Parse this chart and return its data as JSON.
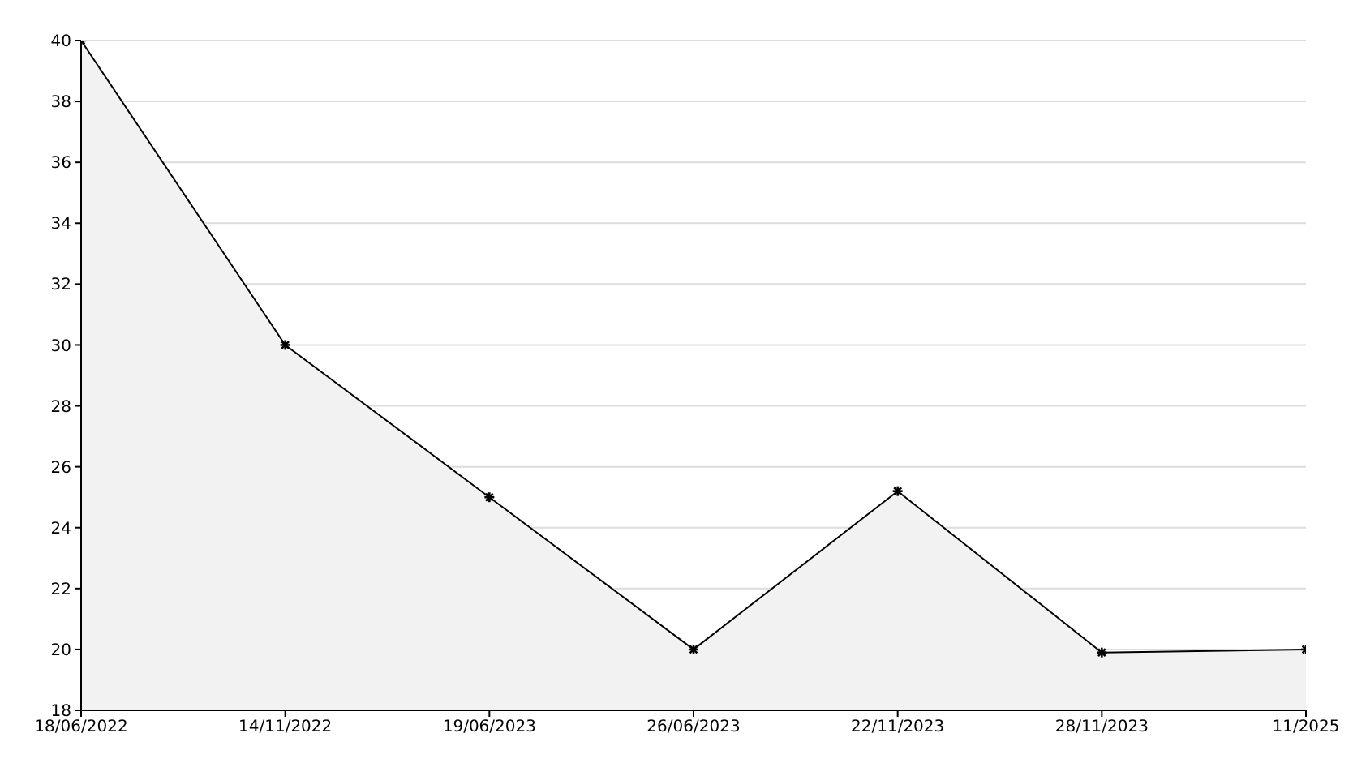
{
  "chart_data": {
    "type": "area",
    "categories": [
      "18/06/2022",
      "14/11/2022",
      "19/06/2023",
      "26/06/2023",
      "22/11/2023",
      "28/11/2023",
      "11/2025"
    ],
    "series": [
      {
        "color": "#000000",
        "values": [
          40,
          30,
          25,
          20,
          25.2,
          19.9,
          20
        ]
      }
    ],
    "ylim": [
      18,
      40
    ],
    "yticks": [
      18,
      20,
      22,
      24,
      26,
      28,
      30,
      32,
      34,
      36,
      38,
      40
    ],
    "grid": "y",
    "marker": "cross",
    "line_style": "solid",
    "legend": false
  }
}
